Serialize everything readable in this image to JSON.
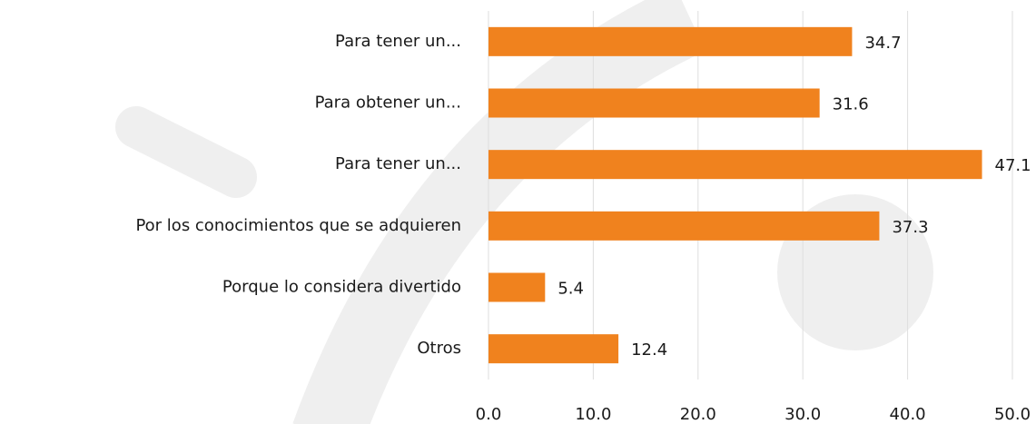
{
  "chart_data": {
    "type": "bar",
    "orientation": "horizontal",
    "categories": [
      "Para tener un...",
      "Para obtener un...",
      "Para tener un...",
      "Por los conocimientos que se adquieren",
      "Porque lo considera divertido",
      "Otros"
    ],
    "values": [
      34.7,
      31.6,
      47.1,
      37.3,
      5.4,
      12.4
    ],
    "color": "#f0821e",
    "xlim": [
      0,
      50
    ],
    "xticks": [
      {
        "value": 0,
        "label": "0.0"
      },
      {
        "value": 10,
        "label": "10.0"
      },
      {
        "value": 20,
        "label": "20.0"
      },
      {
        "value": 30,
        "label": "30.0"
      },
      {
        "value": 40,
        "label": "40.0"
      },
      {
        "value": 50,
        "label": "50.0"
      }
    ],
    "grid": true
  }
}
